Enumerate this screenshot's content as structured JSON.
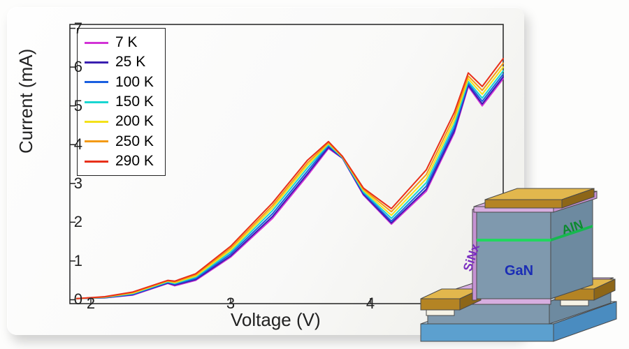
{
  "chart": {
    "type": "line",
    "xlabel": "Voltage (V)",
    "ylabel": "Current (mA)",
    "label_fontsize": 26,
    "tick_fontsize": 22,
    "background_color": "#fdfdfc",
    "panel_bg": "#fefefe",
    "xlim": [
      1.85,
      4.95
    ],
    "ylim": [
      -0.1,
      7.1
    ],
    "xticks": [
      2,
      3,
      4
    ],
    "yticks": [
      0,
      1,
      2,
      3,
      4,
      5,
      6,
      7
    ],
    "line_width": 2,
    "legend": {
      "position": "top-left",
      "border_color": "#222222",
      "bg": "#ffffff",
      "fontsize": 21,
      "items": [
        {
          "label": "7 K",
          "color": "#d233d6"
        },
        {
          "label": "25 K",
          "color": "#3a1fb0"
        },
        {
          "label": "100 K",
          "color": "#1a5fe0"
        },
        {
          "label": "150 K",
          "color": "#19d6d1"
        },
        {
          "label": "200 K",
          "color": "#f4e21a"
        },
        {
          "label": "250 K",
          "color": "#f39a16"
        },
        {
          "label": "290 K",
          "color": "#e8301a"
        }
      ]
    },
    "series": [
      {
        "name": "7 K",
        "color": "#d233d6",
        "x": [
          1.9,
          2.1,
          2.3,
          2.55,
          2.6,
          2.75,
          3.0,
          3.3,
          3.55,
          3.7,
          3.8,
          3.95,
          4.15,
          4.4,
          4.6,
          4.7,
          4.8,
          4.95
        ],
        "y": [
          0.03,
          0.05,
          0.12,
          0.42,
          0.36,
          0.5,
          1.1,
          2.1,
          3.2,
          3.9,
          3.65,
          2.7,
          1.95,
          2.8,
          4.3,
          5.5,
          5.0,
          5.7
        ]
      },
      {
        "name": "25 K",
        "color": "#3a1fb0",
        "x": [
          1.9,
          2.1,
          2.3,
          2.55,
          2.6,
          2.75,
          3.0,
          3.3,
          3.55,
          3.7,
          3.8,
          3.95,
          4.15,
          4.4,
          4.6,
          4.7,
          4.8,
          4.95
        ],
        "y": [
          0.03,
          0.05,
          0.13,
          0.43,
          0.38,
          0.52,
          1.13,
          2.15,
          3.25,
          3.93,
          3.65,
          2.72,
          1.98,
          2.85,
          4.35,
          5.53,
          5.05,
          5.75
        ]
      },
      {
        "name": "100 K",
        "color": "#1a5fe0",
        "x": [
          1.9,
          2.1,
          2.3,
          2.55,
          2.6,
          2.75,
          3.0,
          3.3,
          3.55,
          3.7,
          3.8,
          3.95,
          4.15,
          4.4,
          4.6,
          4.7,
          4.8,
          4.95
        ],
        "y": [
          0.03,
          0.06,
          0.14,
          0.45,
          0.4,
          0.55,
          1.18,
          2.22,
          3.32,
          3.97,
          3.66,
          2.75,
          2.03,
          2.93,
          4.43,
          5.58,
          5.12,
          5.82
        ]
      },
      {
        "name": "150 K",
        "color": "#19d6d1",
        "x": [
          1.9,
          2.1,
          2.3,
          2.55,
          2.6,
          2.75,
          3.0,
          3.3,
          3.55,
          3.7,
          3.8,
          3.95,
          4.15,
          4.4,
          4.6,
          4.7,
          4.8,
          4.95
        ],
        "y": [
          0.03,
          0.06,
          0.16,
          0.46,
          0.42,
          0.58,
          1.23,
          2.3,
          3.4,
          4.0,
          3.67,
          2.78,
          2.1,
          3.02,
          4.52,
          5.63,
          5.2,
          5.9
        ]
      },
      {
        "name": "200 K",
        "color": "#f4e21a",
        "x": [
          1.9,
          2.1,
          2.3,
          2.55,
          2.6,
          2.75,
          3.0,
          3.3,
          3.55,
          3.7,
          3.8,
          3.95,
          4.15,
          4.4,
          4.6,
          4.7,
          4.8,
          4.95
        ],
        "y": [
          0.03,
          0.07,
          0.17,
          0.48,
          0.44,
          0.61,
          1.28,
          2.37,
          3.47,
          4.03,
          3.68,
          2.82,
          2.18,
          3.12,
          4.62,
          5.7,
          5.3,
          6.0
        ]
      },
      {
        "name": "250 K",
        "color": "#f39a16",
        "x": [
          1.9,
          2.1,
          2.3,
          2.55,
          2.6,
          2.75,
          3.0,
          3.3,
          3.55,
          3.7,
          3.8,
          3.95,
          4.15,
          4.4,
          4.6,
          4.7,
          4.8,
          4.95
        ],
        "y": [
          0.03,
          0.07,
          0.19,
          0.49,
          0.46,
          0.64,
          1.33,
          2.43,
          3.53,
          4.05,
          3.69,
          2.85,
          2.27,
          3.23,
          4.72,
          5.77,
          5.4,
          6.1
        ]
      },
      {
        "name": "290 K",
        "color": "#e8301a",
        "x": [
          1.9,
          2.1,
          2.3,
          2.55,
          2.6,
          2.75,
          3.0,
          3.3,
          3.55,
          3.7,
          3.8,
          3.95,
          4.15,
          4.4,
          4.6,
          4.7,
          4.8,
          4.95
        ],
        "y": [
          0.03,
          0.08,
          0.2,
          0.5,
          0.48,
          0.67,
          1.38,
          2.5,
          3.6,
          4.08,
          3.7,
          2.88,
          2.35,
          3.35,
          4.83,
          5.85,
          5.5,
          6.22
        ]
      }
    ]
  },
  "device": {
    "labels": {
      "sinx": "SiNx",
      "gan": "GaN",
      "aln": "AlN"
    },
    "colors": {
      "substrate_front": "#5ca0cf",
      "substrate_top": "#a9cbe3",
      "gan_front": "#7f99ae",
      "gan_top": "#b6c7d4",
      "sinx": "#d7aee0",
      "sinx_side": "#c693d3",
      "pad_top": "#e2b74d",
      "pad_front": "#b48424",
      "pad_inner": "#f6f3e6",
      "aln_line": "#22d65f",
      "outline": "#4a4a4a"
    },
    "label_colors": {
      "sinx": "#7a2ec0",
      "gan": "#1b2db5",
      "aln": "#0c8a2f"
    }
  }
}
